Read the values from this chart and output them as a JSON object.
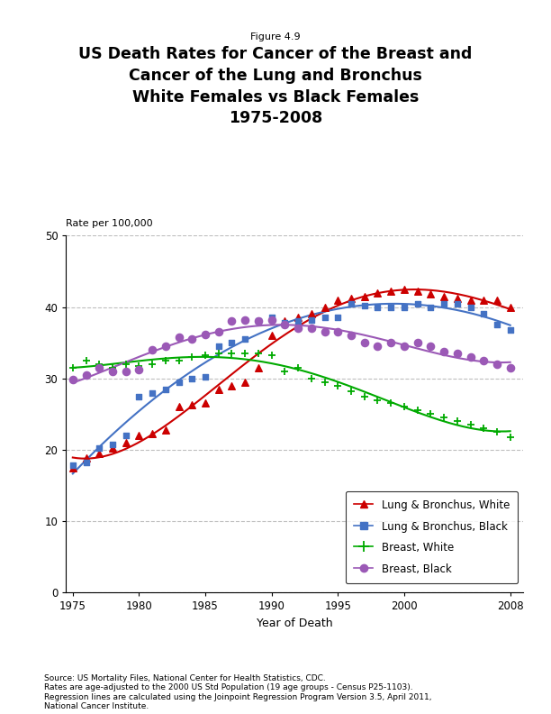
{
  "figure_label": "Figure 4.9",
  "title_line1": "US Death Rates for Cancer of the Breast and",
  "title_line2": "Cancer of the Lung and Bronchus",
  "title_line3": "White Females vs Black Females",
  "title_line4": "1975-2008",
  "xlabel": "Year of Death",
  "ylabel": "Rate per 100,000",
  "ylim": [
    0,
    50
  ],
  "xlim": [
    1974.5,
    2009
  ],
  "yticks": [
    0,
    10,
    20,
    30,
    40,
    50
  ],
  "xticks": [
    1975,
    1980,
    1985,
    1990,
    1995,
    2000,
    2008
  ],
  "source_text": "Source: US Mortality Files, National Center for Health Statistics, CDC.\nRates are age-adjusted to the 2000 US Std Population (19 age groups - Census P25-1103).\nRegression lines are calculated using the Joinpoint Regression Program Version 3.5, April 2011,\nNational Cancer Institute.",
  "lung_white_years": [
    1975,
    1976,
    1977,
    1978,
    1979,
    1980,
    1981,
    1982,
    1983,
    1984,
    1985,
    1986,
    1987,
    1988,
    1989,
    1990,
    1991,
    1992,
    1993,
    1994,
    1995,
    1996,
    1997,
    1998,
    1999,
    2000,
    2001,
    2002,
    2003,
    2004,
    2005,
    2006,
    2007,
    2008
  ],
  "lung_white_vals": [
    17.5,
    18.8,
    19.5,
    20.2,
    21.0,
    22.0,
    22.3,
    22.8,
    26.0,
    26.3,
    26.5,
    28.5,
    29.0,
    29.5,
    31.5,
    36.0,
    38.0,
    38.5,
    39.0,
    40.0,
    41.0,
    41.2,
    41.5,
    42.0,
    42.2,
    42.5,
    42.2,
    41.8,
    41.5,
    41.2,
    41.0,
    41.0,
    41.0,
    40.0
  ],
  "lung_black_years": [
    1975,
    1976,
    1977,
    1978,
    1979,
    1980,
    1981,
    1982,
    1983,
    1984,
    1985,
    1986,
    1987,
    1988,
    1989,
    1990,
    1991,
    1992,
    1993,
    1994,
    1995,
    1996,
    1997,
    1998,
    1999,
    2000,
    2001,
    2002,
    2003,
    2004,
    2005,
    2006,
    2007,
    2008
  ],
  "lung_black_vals": [
    17.8,
    18.2,
    20.3,
    20.8,
    22.0,
    27.5,
    28.0,
    28.5,
    29.5,
    30.0,
    30.2,
    34.5,
    35.0,
    35.5,
    38.0,
    38.5,
    37.8,
    38.0,
    38.2,
    38.5,
    38.5,
    40.5,
    40.2,
    40.0,
    40.0,
    40.0,
    40.5,
    40.0,
    40.5,
    40.5,
    40.0,
    39.0,
    37.5,
    36.8
  ],
  "breast_white_years": [
    1975,
    1976,
    1977,
    1978,
    1979,
    1980,
    1981,
    1982,
    1983,
    1984,
    1985,
    1986,
    1987,
    1988,
    1989,
    1990,
    1991,
    1992,
    1993,
    1994,
    1995,
    1996,
    1997,
    1998,
    1999,
    2000,
    2001,
    2002,
    2003,
    2004,
    2005,
    2006,
    2007,
    2008
  ],
  "breast_white_vals": [
    31.5,
    32.5,
    32.0,
    31.5,
    32.0,
    31.8,
    32.0,
    32.5,
    32.5,
    33.0,
    33.3,
    33.5,
    33.5,
    33.5,
    33.5,
    33.2,
    31.0,
    31.5,
    30.0,
    29.5,
    29.0,
    28.2,
    27.5,
    27.0,
    26.5,
    26.0,
    25.5,
    25.0,
    24.5,
    24.0,
    23.5,
    23.0,
    22.5,
    21.8
  ],
  "breast_black_years": [
    1975,
    1976,
    1977,
    1978,
    1979,
    1980,
    1981,
    1982,
    1983,
    1984,
    1985,
    1986,
    1987,
    1988,
    1989,
    1990,
    1991,
    1992,
    1993,
    1994,
    1995,
    1996,
    1997,
    1998,
    1999,
    2000,
    2001,
    2002,
    2003,
    2004,
    2005,
    2006,
    2007,
    2008
  ],
  "breast_black_vals": [
    29.8,
    30.5,
    31.5,
    31.0,
    31.0,
    31.2,
    34.0,
    34.5,
    35.8,
    35.5,
    36.2,
    36.5,
    38.0,
    38.2,
    38.0,
    38.2,
    37.5,
    37.0,
    37.0,
    36.5,
    36.5,
    36.0,
    35.0,
    34.5,
    35.0,
    34.5,
    35.0,
    34.5,
    33.8,
    33.5,
    33.0,
    32.5,
    32.0,
    31.5
  ],
  "lung_white_color": "#cc0000",
  "lung_black_color": "#4472c4",
  "breast_white_color": "#00aa00",
  "breast_black_color": "#9b59b6",
  "background_color": "#ffffff"
}
